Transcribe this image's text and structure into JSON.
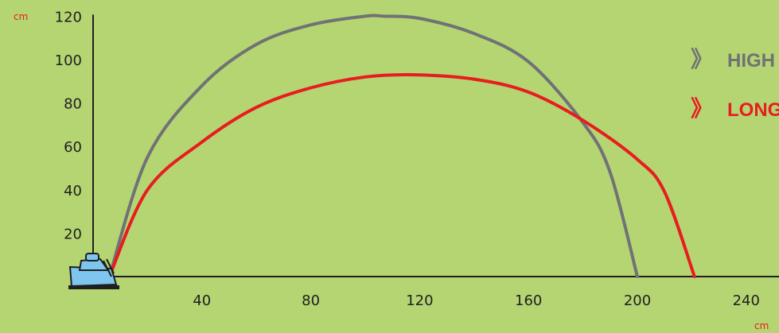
{
  "chart_data": {
    "type": "line",
    "x_unit": "cm",
    "y_unit": "cm",
    "xlim": [
      0,
      240
    ],
    "ylim": [
      0,
      120
    ],
    "x_ticks": [
      40,
      80,
      120,
      160,
      200,
      240
    ],
    "y_ticks": [
      20,
      40,
      60,
      80,
      100,
      120
    ],
    "legend": {
      "placement": "top-right",
      "chevron": "》"
    },
    "series": [
      {
        "name": "HIGH",
        "color": "#707275",
        "x": [
          6,
          20,
          40,
          60,
          80,
          100,
          107,
          120,
          140,
          160,
          180,
          190,
          200
        ],
        "y": [
          0,
          55,
          88,
          107,
          116,
          120,
          120,
          119,
          112,
          99,
          71,
          48,
          0
        ]
      },
      {
        "name": "LONG",
        "color": "#e71d1f",
        "x": [
          6,
          20,
          40,
          60,
          80,
          100,
          118,
          140,
          160,
          180,
          200,
          210,
          221
        ],
        "y": [
          0,
          40,
          62,
          78,
          87,
          92,
          93,
          91,
          85,
          72,
          54,
          39,
          0
        ]
      }
    ],
    "colors": {
      "background": "#b5d573",
      "axis": "#1f1f1f",
      "unit": "#e71d1f",
      "launcher": "#7ec6ee"
    },
    "icons": {
      "launcher": "launcher-icon"
    }
  }
}
